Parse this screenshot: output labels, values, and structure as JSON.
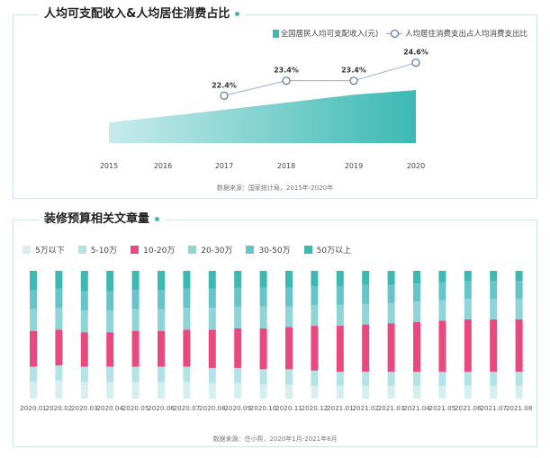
{
  "chart1": {
    "title": "人均可支配收入&人均居住消费占比",
    "legend": {
      "area": "全国居民人均可支配收入(元)",
      "line": "人均居住消费支出占人均消费支出比"
    },
    "source": "数据来源：国家统计局，2015年-2020年"
  },
  "chart2": {
    "title": "装修预算相关文章量",
    "source": "数据来源：住小帮，2020年1月-2021年8月"
  },
  "chart_data": [
    {
      "type": "area",
      "title": "人均可支配收入&人均居住消费占比",
      "categories": [
        "2015",
        "2016",
        "2017",
        "2018",
        "2019",
        "2020"
      ],
      "series": [
        {
          "name": "全国居民人均可支配收入(元)",
          "type": "area",
          "values": [
            21966,
            23821,
            25974,
            28228,
            30733,
            32189
          ]
        },
        {
          "name": "人均居住消费支出占人均消费支出比",
          "type": "line",
          "values": [
            null,
            null,
            22.4,
            23.4,
            23.4,
            24.6
          ],
          "labels": [
            "",
            "",
            "22.4%",
            "23.4%",
            "23.4%",
            "24.6%"
          ]
        }
      ],
      "source": "数据来源：国家统计局，2015年-2020年"
    },
    {
      "type": "bar",
      "stacked": true,
      "title": "装修预算相关文章量",
      "categories": [
        "2020.01",
        "2020.02",
        "2020.03",
        "2020.04",
        "2020.05",
        "2020.06",
        "2020.07",
        "2020.08",
        "2020.09",
        "2020.10",
        "2020.11",
        "2020.12",
        "2021.01",
        "2021.02",
        "2021.03",
        "2021.04",
        "2021.05",
        "2021.06",
        "2021.07",
        "2021.08"
      ],
      "colors": [
        "#d6eeee",
        "#b3e3e6",
        "#e84a7f",
        "#8fd4d6",
        "#67c5c9",
        "#3cb9b3"
      ],
      "series": [
        {
          "name": "5万以下",
          "values": [
            13,
            14,
            13,
            13,
            13,
            13,
            13,
            12,
            12,
            11,
            11,
            10,
            10,
            10,
            10,
            10,
            10,
            10,
            10,
            10
          ]
        },
        {
          "name": "5-10万",
          "values": [
            12,
            12,
            12,
            12,
            12,
            12,
            12,
            12,
            12,
            12,
            12,
            12,
            11,
            11,
            11,
            11,
            11,
            11,
            11,
            11
          ]
        },
        {
          "name": "10-20万",
          "values": [
            28,
            28,
            27,
            27,
            28,
            28,
            29,
            30,
            31,
            32,
            33,
            35,
            36,
            37,
            38,
            39,
            40,
            41,
            41,
            41
          ]
        },
        {
          "name": "20-30万",
          "values": [
            17,
            17,
            17,
            17,
            17,
            17,
            17,
            17,
            17,
            17,
            16,
            16,
            16,
            16,
            16,
            16,
            16,
            16,
            16,
            16
          ]
        },
        {
          "name": "30-50万",
          "values": [
            15,
            15,
            15,
            15,
            15,
            15,
            15,
            15,
            15,
            15,
            15,
            15,
            15,
            15,
            14,
            14,
            14,
            14,
            14,
            14
          ]
        },
        {
          "name": "50万以上",
          "values": [
            15,
            14,
            16,
            16,
            15,
            15,
            14,
            14,
            13,
            13,
            13,
            12,
            12,
            11,
            11,
            10,
            9,
            8,
            8,
            8
          ]
        }
      ],
      "ylim": [
        0,
        100
      ],
      "source": "数据来源：住小帮，2020年1月-2021年8月"
    }
  ]
}
